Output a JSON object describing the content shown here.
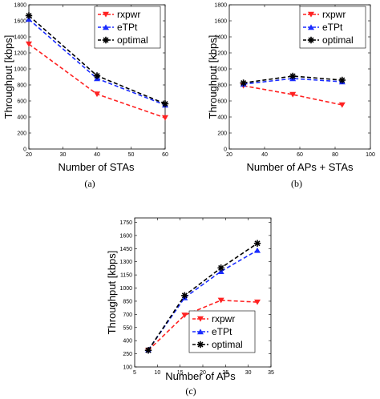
{
  "colors": {
    "rxpwr": "#ff2222",
    "eTPt": "#1a2cff",
    "optimal": "#000000"
  },
  "chart_data": [
    {
      "type": "line",
      "caption": "(a)",
      "xlabel": "Number of STAs",
      "ylabel": "Throughput [kbps]",
      "xlim": [
        20,
        60
      ],
      "ylim": [
        0,
        1800
      ],
      "xticks": [
        20,
        30,
        40,
        50,
        60
      ],
      "yticks": [
        0,
        200,
        400,
        600,
        800,
        1000,
        1200,
        1400,
        1600,
        1800
      ],
      "grid": false,
      "legend": "top-right",
      "series": [
        {
          "name": "rxpwr",
          "marker": "triangle-down",
          "x": [
            20,
            40,
            60
          ],
          "y": [
            1310,
            685,
            390
          ]
        },
        {
          "name": "eTPt",
          "marker": "triangle-up",
          "x": [
            20,
            40,
            60
          ],
          "y": [
            1620,
            880,
            550
          ]
        },
        {
          "name": "optimal",
          "marker": "star",
          "x": [
            20,
            40,
            60
          ],
          "y": [
            1665,
            915,
            565
          ]
        }
      ]
    },
    {
      "type": "line",
      "caption": "(b)",
      "xlabel": "Number of APs + STAs",
      "ylabel": "Throughput [kbps]",
      "xlim": [
        20,
        100
      ],
      "ylim": [
        0,
        1800
      ],
      "xticks": [
        20,
        40,
        60,
        80,
        100
      ],
      "yticks": [
        0,
        200,
        400,
        600,
        800,
        1000,
        1200,
        1400,
        1600,
        1800
      ],
      "grid": false,
      "legend": "top-right",
      "series": [
        {
          "name": "rxpwr",
          "marker": "triangle-down",
          "x": [
            28,
            56,
            84
          ],
          "y": [
            790,
            680,
            550
          ]
        },
        {
          "name": "eTPt",
          "marker": "triangle-up",
          "x": [
            28,
            56,
            84
          ],
          "y": [
            810,
            880,
            840
          ]
        },
        {
          "name": "optimal",
          "marker": "star",
          "x": [
            28,
            56,
            84
          ],
          "y": [
            825,
            910,
            860
          ]
        }
      ]
    },
    {
      "type": "line",
      "caption": "(c)",
      "xlabel": "Number of APs",
      "ylabel": "Throughput [kbps]",
      "xlim": [
        5,
        35
      ],
      "ylim": [
        100,
        1800
      ],
      "xticks": [
        5,
        10,
        15,
        20,
        25,
        30,
        35
      ],
      "yticks": [
        100,
        250,
        400,
        550,
        700,
        850,
        1000,
        1150,
        1300,
        1450,
        1600,
        1750
      ],
      "grid": false,
      "legend": "bottom-right",
      "series": [
        {
          "name": "rxpwr",
          "marker": "triangle-down",
          "x": [
            8,
            16,
            24,
            32
          ],
          "y": [
            290,
            690,
            860,
            840
          ]
        },
        {
          "name": "eTPt",
          "marker": "triangle-up",
          "x": [
            8,
            16,
            24,
            32
          ],
          "y": [
            295,
            890,
            1190,
            1430
          ]
        },
        {
          "name": "optimal",
          "marker": "star",
          "x": [
            8,
            16,
            24,
            32
          ],
          "y": [
            290,
            915,
            1230,
            1510
          ]
        }
      ]
    }
  ]
}
